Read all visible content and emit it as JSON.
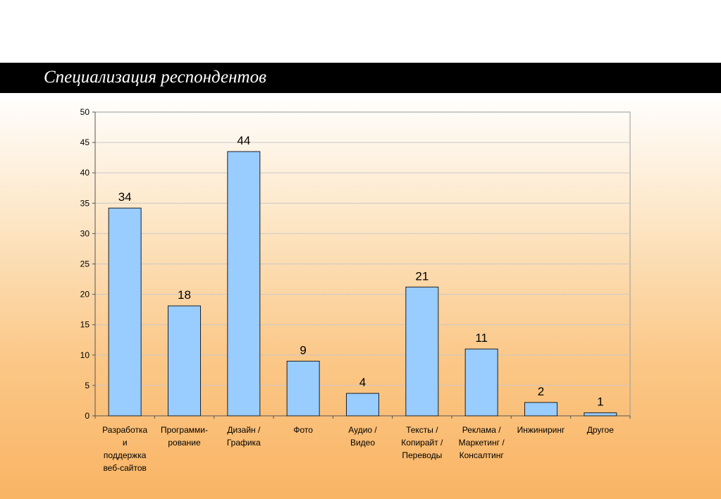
{
  "slide": {
    "title": "Специализация респондентов"
  },
  "colors": {
    "bar_fill": "#99ccff",
    "bar_stroke": "#1f1f1f",
    "title_bar": "#000000",
    "background_top": "#ffffff",
    "background_bottom": "#f9b464"
  },
  "chart_data": {
    "type": "bar",
    "title": "",
    "xlabel": "",
    "ylabel": "",
    "ylim": [
      0,
      50
    ],
    "yticks": [
      0,
      5,
      10,
      15,
      20,
      25,
      30,
      35,
      40,
      45,
      50
    ],
    "grid": true,
    "legend": "none",
    "categories": [
      [
        "Разработка",
        "и",
        "поддержка",
        "веб-сайтов"
      ],
      [
        "Программи-",
        "рование"
      ],
      [
        "Дизайн /",
        "Графика"
      ],
      [
        "Фото"
      ],
      [
        "Аудио /",
        "Видео"
      ],
      [
        "Тексты /",
        "Копирайт /",
        "Переводы"
      ],
      [
        "Реклама /",
        "Маркетинг /",
        "Консалтинг"
      ],
      [
        "Инжиниринг"
      ],
      [
        "Другое"
      ]
    ],
    "values": [
      34.2,
      18.1,
      43.5,
      9,
      3.7,
      21.2,
      11,
      2.2,
      0.5
    ],
    "data_labels": [
      "34",
      "18",
      "44",
      "9",
      "4",
      "21",
      "11",
      "2",
      "1"
    ]
  }
}
